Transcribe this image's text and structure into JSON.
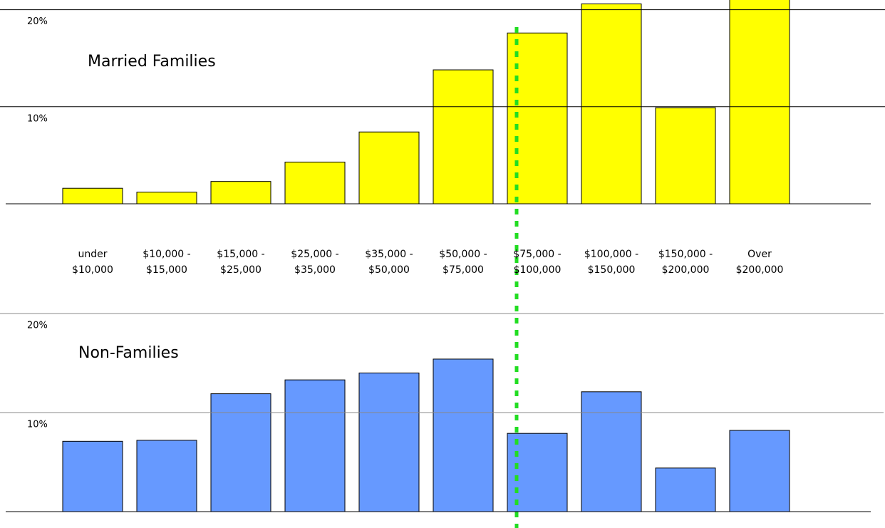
{
  "chart_data": [
    {
      "type": "bar",
      "title": "Married Families",
      "categories": [
        "under\n$10,000",
        "$10,000 -\n$15,000",
        "$15,000 -\n$25,000",
        "$25,000 -\n$35,000",
        "$35,000 -\n$50,000",
        "$50,000 -\n$75,000",
        "$75,000 -\n$100,000",
        "$100,000 -\n$150,000",
        "$150,000 -\n$200,000",
        "Over\n$200,000"
      ],
      "values": [
        1.6,
        1.2,
        2.3,
        4.3,
        7.4,
        13.8,
        17.6,
        20.6,
        9.9,
        22
      ],
      "color": "#ffff00",
      "ylim": [
        0,
        21
      ],
      "yticks": [
        {
          "value": 10,
          "label": "10%"
        },
        {
          "value": 20,
          "label": "20%"
        }
      ],
      "grid": true
    },
    {
      "type": "bar",
      "title": "Non-Families",
      "values": [
        7.1,
        7.2,
        11.9,
        13.3,
        14.0,
        15.4,
        7.9,
        12.1,
        4.4,
        8.2
      ],
      "color": "#6699ff",
      "ylim": [
        0,
        20
      ],
      "yticks": [
        {
          "value": 10,
          "label": "10%"
        },
        {
          "value": 20,
          "label": "20%"
        }
      ],
      "grid": true
    }
  ]
}
